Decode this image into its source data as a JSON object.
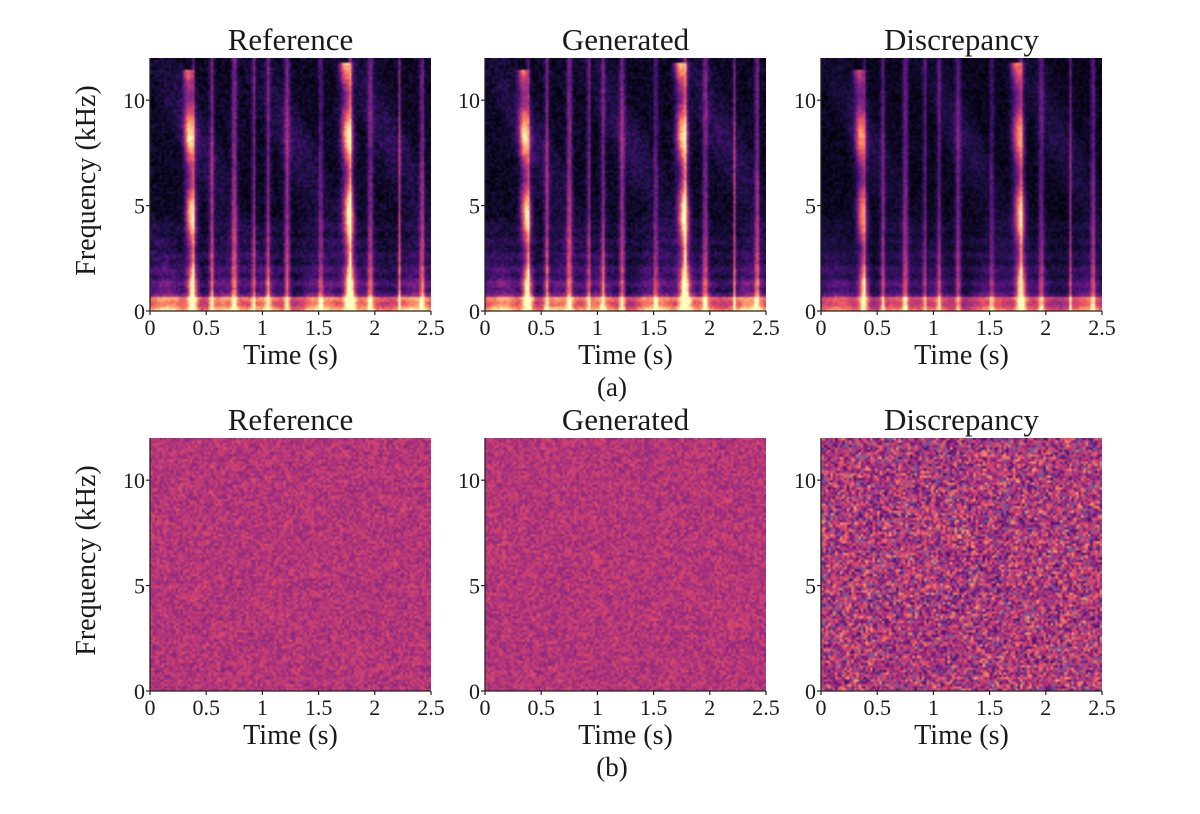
{
  "caption_a": "(a)",
  "caption_b": "(b)",
  "colors": {
    "colormap": [
      "#000004",
      "#1b0c41",
      "#4a0c6b",
      "#781c6d",
      "#a52c60",
      "#cf4446",
      "#ed6925",
      "#fb9b06",
      "#f7d13d",
      "#fcffa4"
    ],
    "noise_base": "#a63a6a"
  },
  "chart_data": [
    {
      "type": "heatmap",
      "row": "a",
      "panel": "reference",
      "title": "Reference",
      "xlabel": "Time (s)",
      "ylabel": "Frequency (kHz)",
      "xlim": [
        0,
        2.5
      ],
      "ylim": [
        0,
        12
      ],
      "xticks": [
        "0",
        "0.5",
        "1",
        "1.5",
        "2",
        "2.5"
      ],
      "yticks": [
        "0",
        "5",
        "10"
      ],
      "content": "speech spectrogram"
    },
    {
      "type": "heatmap",
      "row": "a",
      "panel": "generated",
      "title": "Generated",
      "xlabel": "Time (s)",
      "ylabel": "",
      "xlim": [
        0,
        2.5
      ],
      "ylim": [
        0,
        12
      ],
      "xticks": [
        "0",
        "0.5",
        "1",
        "1.5",
        "2",
        "2.5"
      ],
      "yticks": [
        "0",
        "5",
        "10"
      ],
      "content": "speech spectrogram"
    },
    {
      "type": "heatmap",
      "row": "a",
      "panel": "discrepancy",
      "title": "Discrepancy",
      "xlabel": "Time (s)",
      "ylabel": "",
      "xlim": [
        0,
        2.5
      ],
      "ylim": [
        0,
        12
      ],
      "xticks": [
        "0",
        "0.5",
        "1",
        "1.5",
        "2",
        "2.5"
      ],
      "yticks": [
        "0",
        "5",
        "10"
      ],
      "content": "speech spectrogram difference"
    },
    {
      "type": "heatmap",
      "row": "b",
      "panel": "reference",
      "title": "Reference",
      "xlabel": "Time (s)",
      "ylabel": "Frequency (kHz)",
      "xlim": [
        0,
        2.5
      ],
      "ylim": [
        0,
        12
      ],
      "xticks": [
        "0",
        "0.5",
        "1",
        "1.5",
        "2",
        "2.5"
      ],
      "yticks": [
        "0",
        "5",
        "10"
      ],
      "content": "uniform noise"
    },
    {
      "type": "heatmap",
      "row": "b",
      "panel": "generated",
      "title": "Generated",
      "xlabel": "Time (s)",
      "ylabel": "",
      "xlim": [
        0,
        2.5
      ],
      "ylim": [
        0,
        12
      ],
      "xticks": [
        "0",
        "0.5",
        "1",
        "1.5",
        "2",
        "2.5"
      ],
      "yticks": [
        "0",
        "5",
        "10"
      ],
      "content": "uniform noise"
    },
    {
      "type": "heatmap",
      "row": "b",
      "panel": "discrepancy",
      "title": "Discrepancy",
      "xlabel": "Time (s)",
      "ylabel": "",
      "xlim": [
        0,
        2.5
      ],
      "ylim": [
        0,
        12
      ],
      "xticks": [
        "0",
        "0.5",
        "1",
        "1.5",
        "2",
        "2.5"
      ],
      "yticks": [
        "0",
        "5",
        "10"
      ],
      "content": "noise difference"
    }
  ]
}
